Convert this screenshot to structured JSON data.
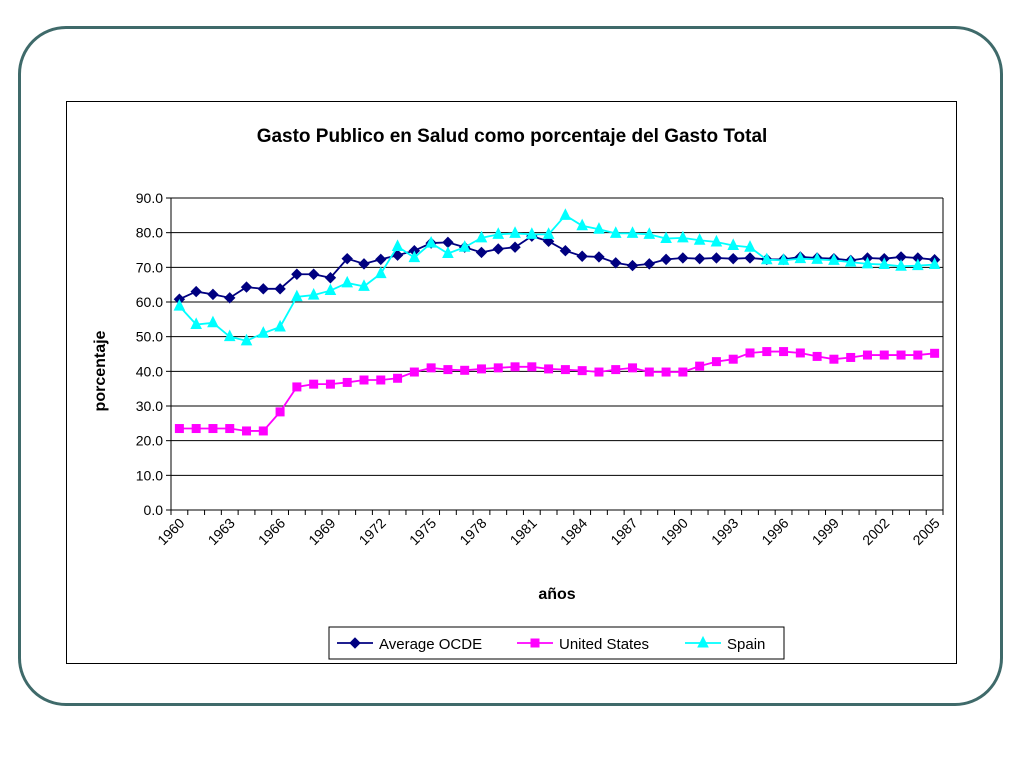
{
  "chart_data": {
    "type": "line",
    "title": "Gasto Publico en Salud como porcentaje del Gasto Total",
    "xlabel": "años",
    "ylabel": "porcentaje",
    "ylim": [
      0,
      90
    ],
    "yticks": [
      "0.0",
      "10.0",
      "20.0",
      "30.0",
      "40.0",
      "50.0",
      "60.0",
      "70.0",
      "80.0",
      "90.0"
    ],
    "xtick_labels": [
      "1960",
      "1963",
      "1966",
      "1969",
      "1972",
      "1975",
      "1978",
      "1981",
      "1984",
      "1987",
      "1990",
      "1993",
      "1996",
      "1999",
      "2002",
      "2005"
    ],
    "x": [
      1960,
      1961,
      1962,
      1963,
      1964,
      1965,
      1966,
      1967,
      1968,
      1969,
      1970,
      1971,
      1972,
      1973,
      1974,
      1975,
      1976,
      1977,
      1978,
      1979,
      1980,
      1981,
      1982,
      1983,
      1984,
      1985,
      1986,
      1987,
      1988,
      1989,
      1990,
      1991,
      1992,
      1993,
      1994,
      1995,
      1996,
      1997,
      1998,
      1999,
      2000,
      2001,
      2002,
      2003,
      2004,
      2005
    ],
    "grid": true,
    "legend_position": "bottom",
    "series": [
      {
        "name": "Average OCDE",
        "color": "#000080",
        "marker": "diamond",
        "values": [
          60.8,
          63.0,
          62.2,
          61.2,
          64.3,
          63.8,
          63.8,
          68.0,
          68.0,
          67.0,
          72.5,
          71.0,
          72.3,
          73.5,
          74.8,
          77.0,
          77.2,
          75.8,
          74.3,
          75.3,
          75.8,
          79.0,
          77.5,
          74.8,
          73.2,
          73.0,
          71.3,
          70.5,
          71.0,
          72.3,
          72.7,
          72.5,
          72.7,
          72.5,
          72.7,
          72.3,
          72.3,
          73.0,
          72.7,
          72.5,
          72.0,
          72.7,
          72.5,
          73.0,
          72.7,
          72.2
        ]
      },
      {
        "name": "United States",
        "color": "#ff00ff",
        "marker": "square",
        "values": [
          23.5,
          23.5,
          23.5,
          23.5,
          22.8,
          22.8,
          28.3,
          35.5,
          36.3,
          36.3,
          36.8,
          37.5,
          37.5,
          38.0,
          39.8,
          41.0,
          40.5,
          40.3,
          40.7,
          41.0,
          41.3,
          41.3,
          40.7,
          40.5,
          40.2,
          39.8,
          40.5,
          41.0,
          39.8,
          39.8,
          39.8,
          41.5,
          42.8,
          43.5,
          45.3,
          45.7,
          45.7,
          45.3,
          44.3,
          43.5,
          44.0,
          44.7,
          44.7,
          44.7,
          44.7,
          45.2
        ]
      },
      {
        "name": "Spain",
        "color": "#00ffff",
        "marker": "triangle",
        "values": [
          58.8,
          53.5,
          54.0,
          50.0,
          48.8,
          51.0,
          52.8,
          61.5,
          62.0,
          63.3,
          65.5,
          64.5,
          68.2,
          76.0,
          72.8,
          77.0,
          74.0,
          75.8,
          78.5,
          79.5,
          79.8,
          79.5,
          79.5,
          85.0,
          82.0,
          81.0,
          79.8,
          79.8,
          79.5,
          78.3,
          78.5,
          77.8,
          77.3,
          76.3,
          75.8,
          72.2,
          72.0,
          72.5,
          72.3,
          72.0,
          71.5,
          71.0,
          70.8,
          70.3,
          70.5,
          70.8
        ]
      }
    ]
  }
}
